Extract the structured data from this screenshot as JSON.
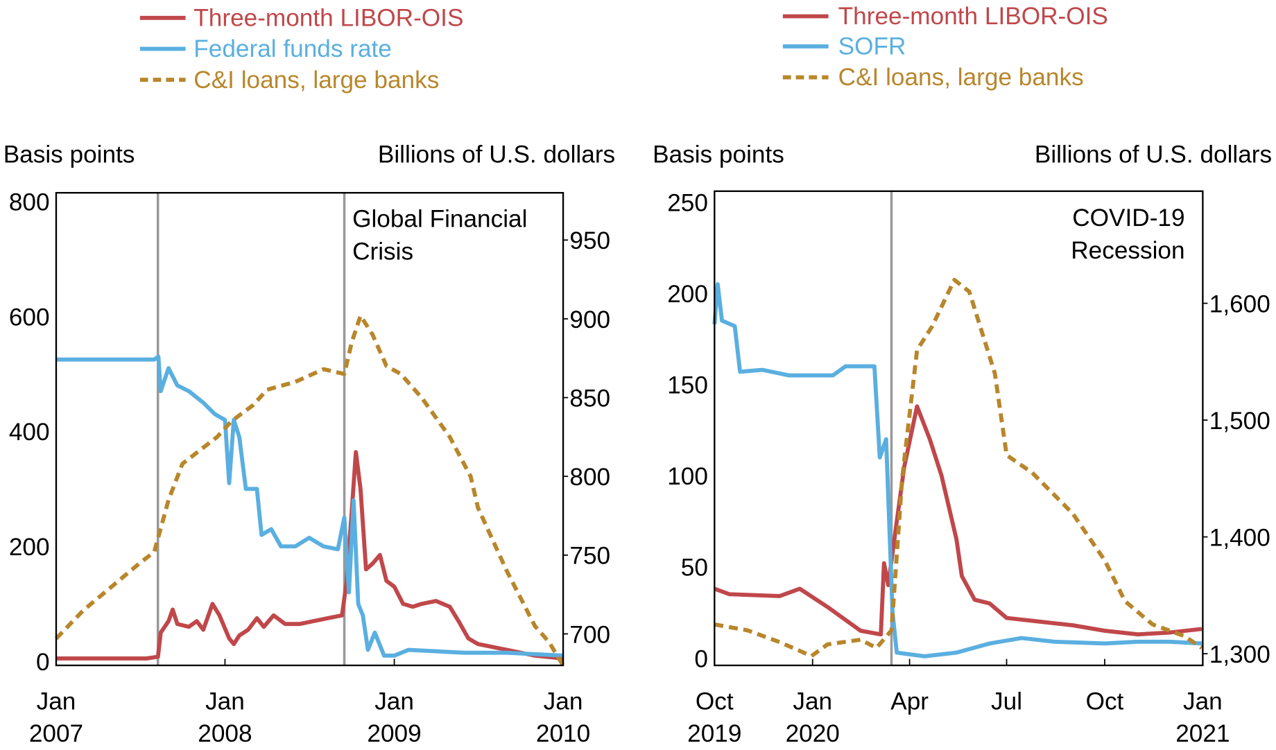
{
  "colors": {
    "libor_ois": "#c0474a",
    "rate": "#5aafe0",
    "loans": "#b8862b",
    "event_line": "#999999"
  },
  "chart_data": [
    {
      "type": "line",
      "annotation": [
        "Global Financial",
        "Crisis"
      ],
      "ylabel_left": "Basis points",
      "ylabel_right": "Billions of U.S. dollars",
      "ylim_left": [
        -7,
        815
      ],
      "ylim_right": [
        680,
        980
      ],
      "xlim": [
        "2007-01-01",
        "2010-01-01"
      ],
      "yticks_left": [
        "0",
        "200",
        "400",
        "600",
        "800"
      ],
      "yticks_right": [
        "700",
        "750",
        "800",
        "850",
        "900",
        "950"
      ],
      "xticks": [
        {
          "date": "2007-01-01",
          "label": [
            "Jan",
            "2007"
          ]
        },
        {
          "date": "2008-01-01",
          "label": [
            "Jan",
            "2008"
          ]
        },
        {
          "date": "2009-01-01",
          "label": [
            "Jan",
            "2009"
          ]
        },
        {
          "date": "2010-01-01",
          "label": [
            "Jan",
            "2010"
          ]
        }
      ],
      "event_lines": [
        "2007-08-09",
        "2008-09-15"
      ],
      "grid": false,
      "legend": "top-left",
      "series": [
        {
          "name": "Three-month LIBOR-OIS",
          "axis": "left",
          "style": "solid",
          "color_key": "libor_ois",
          "x": [
            "2007-01-01",
            "2007-07-15",
            "2007-08-09",
            "2007-08-15",
            "2007-09-01",
            "2007-09-10",
            "2007-09-20",
            "2007-10-15",
            "2007-11-01",
            "2007-11-15",
            "2007-12-05",
            "2007-12-20",
            "2008-01-10",
            "2008-01-20",
            "2008-02-01",
            "2008-02-20",
            "2008-03-10",
            "2008-03-25",
            "2008-04-15",
            "2008-05-10",
            "2008-06-10",
            "2008-07-10",
            "2008-08-10",
            "2008-09-10",
            "2008-09-20",
            "2008-10-01",
            "2008-10-10",
            "2008-10-20",
            "2008-11-01",
            "2008-11-15",
            "2008-12-01",
            "2008-12-15",
            "2009-01-01",
            "2009-01-20",
            "2009-02-10",
            "2009-03-01",
            "2009-04-01",
            "2009-05-01",
            "2009-05-20",
            "2009-06-10",
            "2009-07-01",
            "2009-09-01",
            "2009-11-01",
            "2010-01-01"
          ],
          "y": [
            5,
            5,
            8,
            50,
            70,
            90,
            65,
            60,
            70,
            55,
            100,
            80,
            40,
            30,
            45,
            55,
            75,
            60,
            80,
            65,
            65,
            70,
            75,
            80,
            140,
            260,
            364,
            300,
            160,
            170,
            185,
            140,
            130,
            100,
            95,
            100,
            105,
            95,
            70,
            40,
            30,
            20,
            10,
            5
          ]
        },
        {
          "name": "Federal funds rate",
          "axis": "left",
          "style": "solid",
          "color_key": "rate",
          "x": [
            "2007-01-01",
            "2007-08-01",
            "2007-08-10",
            "2007-08-15",
            "2007-09-01",
            "2007-09-20",
            "2007-10-15",
            "2007-11-15",
            "2007-12-10",
            "2008-01-01",
            "2008-01-10",
            "2008-01-20",
            "2008-02-01",
            "2008-02-15",
            "2008-03-10",
            "2008-03-20",
            "2008-04-10",
            "2008-05-01",
            "2008-06-01",
            "2008-07-01",
            "2008-08-01",
            "2008-09-01",
            "2008-09-15",
            "2008-09-25",
            "2008-10-05",
            "2008-10-15",
            "2008-10-25",
            "2008-11-05",
            "2008-11-20",
            "2008-12-10",
            "2009-01-01",
            "2009-02-01",
            "2009-06-01",
            "2009-09-01",
            "2010-01-01"
          ],
          "y": [
            525,
            525,
            530,
            470,
            510,
            480,
            470,
            450,
            430,
            420,
            310,
            420,
            390,
            300,
            300,
            220,
            230,
            200,
            200,
            215,
            200,
            195,
            250,
            120,
            280,
            100,
            80,
            20,
            50,
            10,
            10,
            20,
            15,
            15,
            10
          ]
        },
        {
          "name": "C&I loans, large banks",
          "axis": "right",
          "style": "dashed",
          "color_key": "loans",
          "x": [
            "2007-01-01",
            "2007-03-01",
            "2007-05-01",
            "2007-07-01",
            "2007-08-01",
            "2007-09-01",
            "2007-10-01",
            "2007-11-01",
            "2007-12-15",
            "2008-01-15",
            "2008-03-01",
            "2008-04-01",
            "2008-06-01",
            "2008-08-01",
            "2008-09-15",
            "2008-10-01",
            "2008-10-20",
            "2008-11-15",
            "2008-12-15",
            "2009-01-15",
            "2009-03-01",
            "2009-05-01",
            "2009-06-15",
            "2009-07-01",
            "2009-09-01",
            "2009-11-01",
            "2009-12-01",
            "2010-01-01"
          ],
          "y": [
            697,
            715,
            730,
            745,
            752,
            785,
            808,
            815,
            825,
            835,
            845,
            855,
            860,
            868,
            865,
            885,
            902,
            890,
            870,
            865,
            850,
            825,
            800,
            780,
            740,
            705,
            695,
            680
          ]
        }
      ]
    },
    {
      "type": "line",
      "annotation": [
        "COVID-19",
        "Recession"
      ],
      "ylabel_left": "Basis points",
      "ylabel_right": "Billions of U.S. dollars",
      "ylim_left": [
        -4,
        256
      ],
      "ylim_right": [
        1290,
        1696
      ],
      "xlim": [
        "2019-10-01",
        "2021-01-01"
      ],
      "yticks_left": [
        "0",
        "50",
        "100",
        "150",
        "200",
        "250"
      ],
      "yticks_right": [
        "1,300",
        "1,400",
        "1,500",
        "1,600"
      ],
      "xticks": [
        {
          "date": "2019-10-01",
          "label": [
            "Oct",
            "2019"
          ]
        },
        {
          "date": "2020-01-01",
          "label": [
            "Jan",
            "2020"
          ]
        },
        {
          "date": "2020-04-01",
          "label": [
            "Apr",
            ""
          ]
        },
        {
          "date": "2020-07-01",
          "label": [
            "Jul",
            ""
          ]
        },
        {
          "date": "2020-10-01",
          "label": [
            "Oct",
            ""
          ]
        },
        {
          "date": "2021-01-01",
          "label": [
            "Jan",
            "2021"
          ]
        }
      ],
      "event_lines": [
        "2020-03-15"
      ],
      "grid": false,
      "legend": "top-right",
      "series": [
        {
          "name": "Three-month LIBOR-OIS",
          "axis": "left",
          "style": "solid",
          "color_key": "libor_ois",
          "x": [
            "2019-10-01",
            "2019-10-15",
            "2019-12-01",
            "2019-12-20",
            "2020-01-15",
            "2020-02-15",
            "2020-03-05",
            "2020-03-08",
            "2020-03-12",
            "2020-03-20",
            "2020-03-27",
            "2020-04-08",
            "2020-04-20",
            "2020-05-01",
            "2020-05-15",
            "2020-05-20",
            "2020-06-01",
            "2020-06-15",
            "2020-07-01",
            "2020-08-01",
            "2020-09-01",
            "2020-10-01",
            "2020-11-01",
            "2020-12-01",
            "2020-12-31"
          ],
          "y": [
            38,
            35,
            34,
            38,
            28,
            15,
            13,
            52,
            40,
            75,
            105,
            138,
            120,
            100,
            65,
            45,
            32,
            30,
            22,
            20,
            18,
            15,
            13,
            14,
            16
          ]
        },
        {
          "name": "SOFR",
          "axis": "left",
          "style": "solid",
          "color_key": "rate",
          "x": [
            "2019-10-01",
            "2019-10-04",
            "2019-10-08",
            "2019-10-20",
            "2019-10-25",
            "2019-11-15",
            "2019-12-10",
            "2020-01-01",
            "2020-01-20",
            "2020-02-01",
            "2020-02-28",
            "2020-03-04",
            "2020-03-10",
            "2020-03-16",
            "2020-03-20",
            "2020-04-15",
            "2020-05-15",
            "2020-06-15",
            "2020-07-15",
            "2020-08-15",
            "2020-10-01",
            "2020-11-01",
            "2020-12-01",
            "2020-12-31"
          ],
          "y": [
            183,
            205,
            185,
            182,
            157,
            158,
            155,
            155,
            155,
            160,
            160,
            110,
            120,
            25,
            3,
            1,
            3,
            8,
            11,
            9,
            8,
            9,
            9,
            8
          ]
        },
        {
          "name": "C&I loans, large banks",
          "axis": "right",
          "style": "dashed",
          "color_key": "loans",
          "x": [
            "2019-10-01",
            "2019-11-01",
            "2019-12-01",
            "2019-12-31",
            "2020-01-15",
            "2020-02-15",
            "2020-03-01",
            "2020-03-15",
            "2020-03-25",
            "2020-04-08",
            "2020-04-22",
            "2020-05-13",
            "2020-05-27",
            "2020-06-20",
            "2020-07-01",
            "2020-07-25",
            "2020-09-01",
            "2020-10-01",
            "2020-10-20",
            "2020-11-15",
            "2020-12-15",
            "2020-12-31"
          ],
          "y": [
            1325,
            1320,
            1310,
            1298,
            1308,
            1312,
            1305,
            1320,
            1450,
            1560,
            1580,
            1620,
            1610,
            1540,
            1470,
            1455,
            1420,
            1380,
            1345,
            1325,
            1315,
            1305
          ]
        }
      ]
    }
  ]
}
